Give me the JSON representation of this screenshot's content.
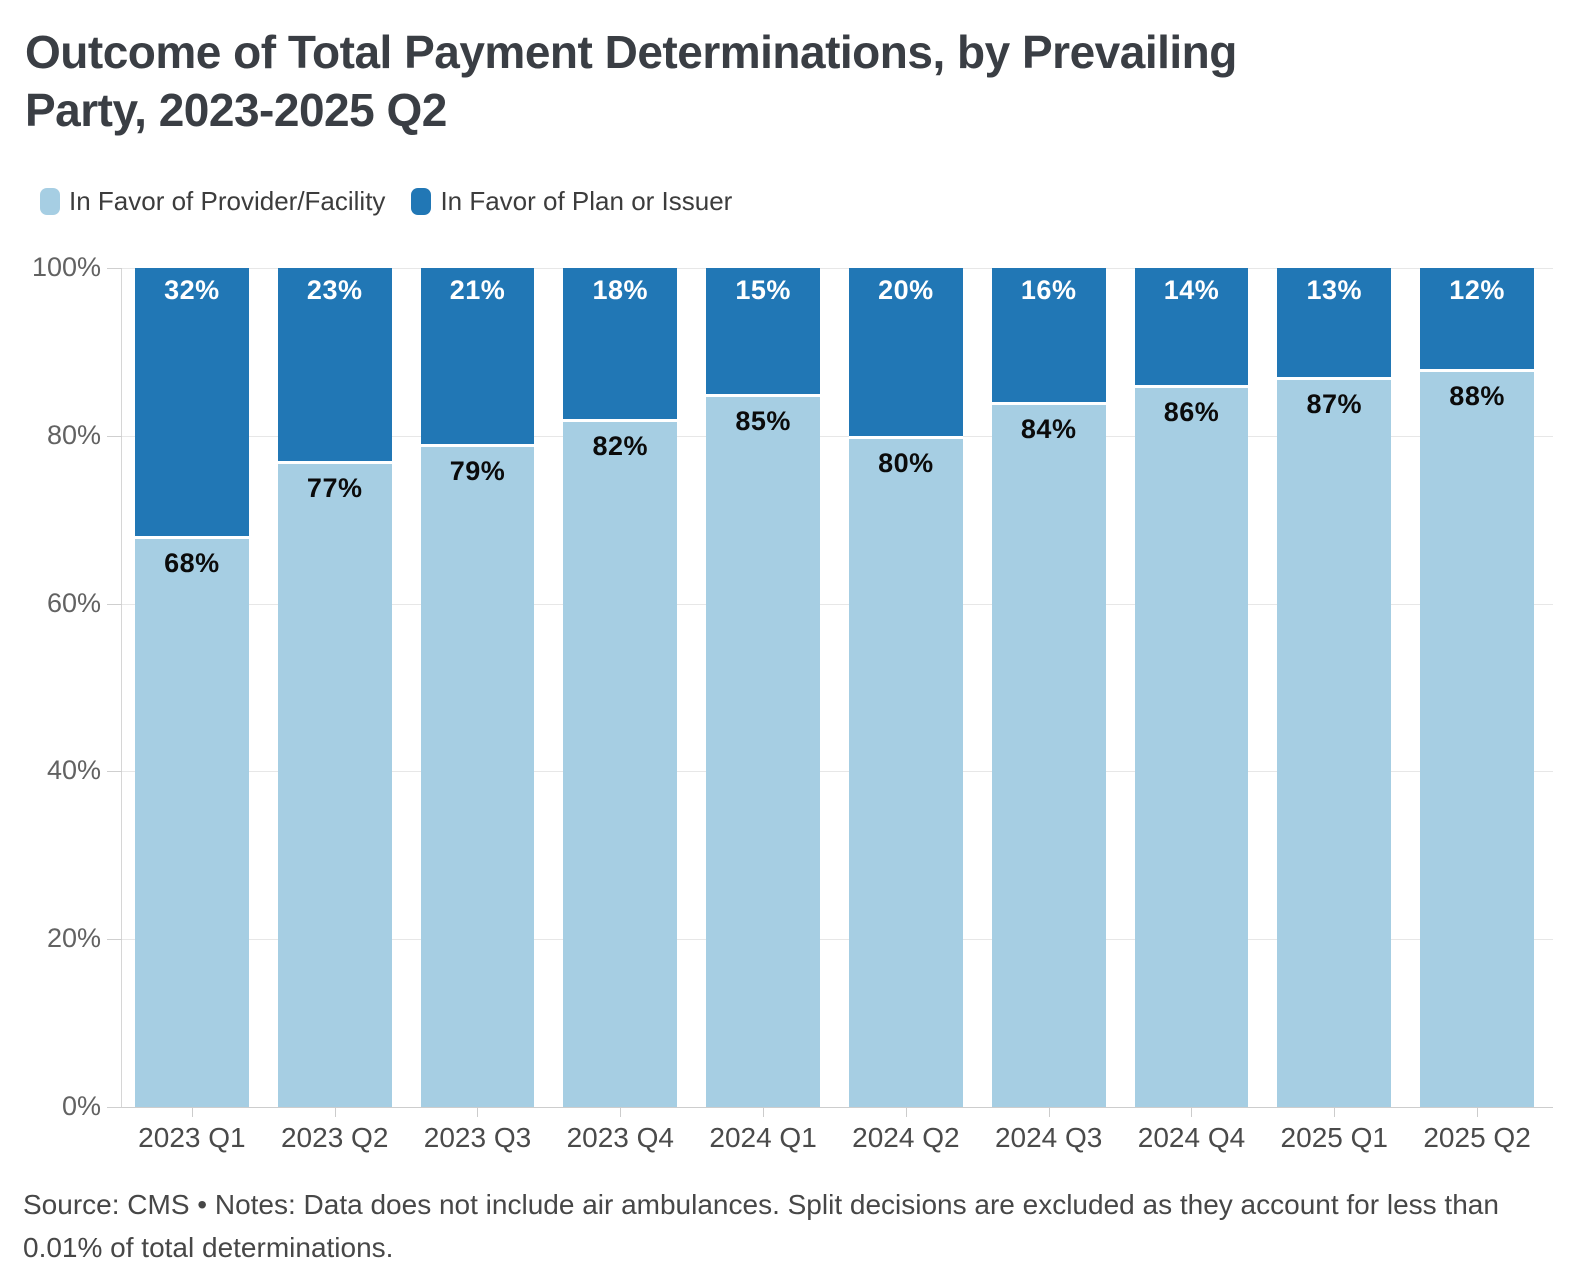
{
  "header": {
    "title": "Outcome of Total Payment Determinations, by Prevailing Party, 2023-2025 Q2"
  },
  "chart_data": {
    "type": "bar",
    "stacked": true,
    "normalized": true,
    "unit": "%",
    "title": "Outcome of Total Payment Determinations, by Prevailing Party, 2023-2025 Q2",
    "categories": [
      "2023 Q1",
      "2023 Q2",
      "2023 Q3",
      "2023 Q4",
      "2024 Q1",
      "2024 Q2",
      "2024 Q3",
      "2024 Q4",
      "2025 Q1",
      "2025 Q2"
    ],
    "series": [
      {
        "name": "In Favor of Provider/Facility",
        "color": "#a6cee3",
        "label_color": "#0b0b0b",
        "values": [
          68,
          77,
          79,
          82,
          85,
          80,
          84,
          86,
          87,
          88
        ]
      },
      {
        "name": "In Favor of Plan or Issuer",
        "color": "#2177b5",
        "label_color": "#ffffff",
        "values": [
          32,
          23,
          21,
          18,
          15,
          20,
          16,
          14,
          13,
          12
        ]
      }
    ],
    "xlabel": "",
    "ylabel": "",
    "ylim": [
      0,
      100
    ],
    "yticks": [
      0,
      20,
      40,
      60,
      80,
      100
    ],
    "ytick_labels": [
      "0%",
      "20%",
      "40%",
      "60%",
      "80%",
      "100%"
    ],
    "grid": true,
    "legend_position": "top-left",
    "bar_value_labels": true
  },
  "colors": {
    "provider_fill": "#a6cee3",
    "plan_fill": "#2177b5",
    "gridline": "#e7e7e7",
    "axis": "#cdcdcd",
    "title_text": "#3a3e44",
    "tick_text": "#626262"
  },
  "footer": {
    "note": "Source: CMS • Notes: Data does not include air ambulances. Split decisions are excluded as they account for less than 0.01% of total determinations."
  }
}
